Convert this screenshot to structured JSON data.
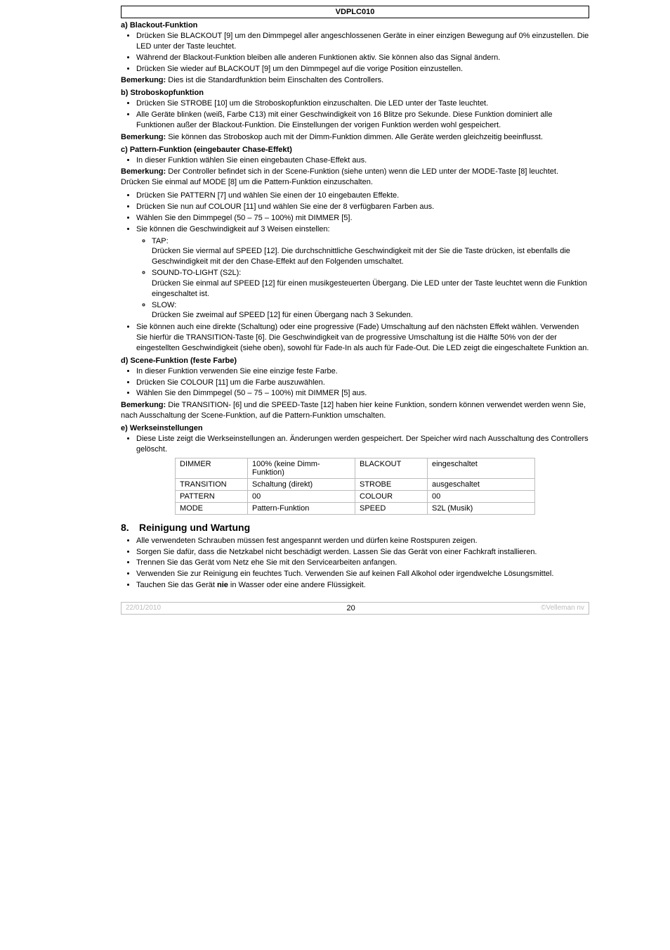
{
  "header": {
    "title": "VDPLC010"
  },
  "sections": {
    "a": {
      "heading": "a) Blackout-Funktion",
      "items": [
        "Drücken Sie BLACKOUT [9] um den Dimmpegel aller angeschlossenen Geräte in einer einzigen Bewegung auf 0% einzustellen. Die LED unter der Taste leuchtet.",
        "Während der Blackout-Funktion bleiben alle anderen Funktionen aktiv. Sie können also das Signal ändern.",
        "Drücken Sie wieder auf BLACKOUT [9] um den Dimmpegel auf die vorige Position einzustellen."
      ],
      "remark_lead": "Bemerkung:",
      "remark": " Dies ist die Standardfunktion beim Einschalten des Controllers."
    },
    "b": {
      "heading": "b) Stroboskopfunktion",
      "items": [
        "Drücken Sie STROBE [10] um die Stroboskopfunktion einzuschalten. Die LED unter der Taste leuchtet.",
        "Alle Geräte blinken (weiß, Farbe C13) mit einer Geschwindigkeit von 16 Blitze pro Sekunde. Diese Funktion dominiert alle Funktionen außer der Blackout-Funktion. Die Einstellungen der vorigen Funktion werden wohl gespeichert."
      ],
      "remark_lead": "Bemerkung:",
      "remark": " Sie können das Stroboskop auch mit der Dimm-Funktion dimmen. Alle Geräte werden gleichzeitig beeinflusst."
    },
    "c": {
      "heading": "c) Pattern-Funktion (eingebauter Chase-Effekt)",
      "item1": "In dieser Funktion wählen Sie einen eingebauten Chase-Effekt aus.",
      "remark1_lead": "Bemerkung:",
      "remark1": " Der Controller befindet sich in der Scene-Funktion (siehe unten) wenn die LED unter der MODE-Taste [8] leuchtet. Drücken Sie einmal auf MODE [8] um die Pattern-Funktion einzuschalten.",
      "items2": [
        "Drücken Sie PATTERN [7] und wählen Sie einen der 10 eingebauten Effekte.",
        "Drücken Sie nun auf COLOUR [11] und wählen Sie eine der 8 verfügbaren Farben aus.",
        "Wählen Sie den Dimmpegel (50 – 75 – 100%) mit DIMMER [5].",
        "Sie können die Geschwindigkeit auf 3 Weisen einstellen:"
      ],
      "sub": [
        {
          "label": "TAP:",
          "body": "Drücken Sie viermal auf SPEED [12]. Die durchschnittliche Geschwindigkeit mit der Sie die Taste drücken, ist ebenfalls die Geschwindigkeit mit der den Chase-Effekt auf den Folgenden umschaltet."
        },
        {
          "label": "SOUND-TO-LIGHT (S2L):",
          "body": "Drücken Sie einmal auf SPEED [12] für einen musikgesteuerten Übergang. Die LED unter der Taste leuchtet wenn die Funktion eingeschaltet ist."
        },
        {
          "label": "SLOW:",
          "body": "Drücken Sie zweimal auf SPEED [12] für einen Übergang nach 3 Sekunden."
        }
      ],
      "item_last": "Sie können auch eine direkte (Schaltung) oder eine progressive (Fade) Umschaltung auf den nächsten Effekt wählen. Verwenden Sie hierfür die TRANSITION-Taste [6]. Die Geschwindigkeit van de progressive Umschaltung ist die Hälfte 50% von der der eingestellten Geschwindigkeit (siehe oben), sowohl für Fade-In als auch für Fade-Out. Die LED zeigt die eingeschaltete Funktion an."
    },
    "d": {
      "heading": "d) Scene-Funktion (feste Farbe)",
      "items": [
        "In dieser Funktion verwenden Sie eine einzige feste Farbe.",
        "Drücken Sie COLOUR [11] um die Farbe auszuwählen.",
        "Wählen Sie den Dimmpegel (50 – 75 – 100%) mit DIMMER [5] aus."
      ],
      "remark_lead": "Bemerkung:",
      "remark": " Die TRANSITION- [6] und die SPEED-Taste [12] haben hier keine Funktion, sondern können verwendet werden wenn Sie, nach Ausschaltung der Scene-Funktion, auf die Pattern-Funktion umschalten."
    },
    "e": {
      "heading": "e) Werkseinstellungen",
      "item": "Diese Liste zeigt die Werkseinstellungen an. Änderungen werden gespeichert. Der Speicher wird nach Ausschaltung des Controllers gelöscht."
    }
  },
  "table": {
    "rows": [
      [
        "DIMMER",
        "100% (keine Dimm-Funktion)",
        "BLACKOUT",
        "eingeschaltet"
      ],
      [
        "TRANSITION",
        "Schaltung (direkt)",
        "STROBE",
        "ausgeschaltet"
      ],
      [
        "PATTERN",
        "00",
        "COLOUR",
        "00"
      ],
      [
        "MODE",
        "Pattern-Funktion",
        "SPEED",
        "S2L (Musik)"
      ]
    ]
  },
  "h2": {
    "num": "8.",
    "title": "Reinigung und Wartung"
  },
  "maint": {
    "items": [
      "Alle verwendeten Schrauben müssen fest angespannt werden und dürfen keine Rostspuren zeigen.",
      "Sorgen Sie dafür, dass die Netzkabel nicht beschädigt werden. Lassen Sie das Gerät von einer Fachkraft installieren.",
      "Trennen Sie das Gerät vom Netz ehe Sie mit den Servicearbeiten anfangen.",
      "Verwenden Sie zur Reinigung ein feuchtes Tuch. Verwenden Sie auf keinen Fall Alkohol oder irgendwelche Lösungsmittel."
    ],
    "last_pre": "Tauchen Sie das Gerät ",
    "last_bold": "nie",
    "last_post": " in Wasser oder eine andere Flüssigkeit."
  },
  "footer": {
    "left": "22/01/2010",
    "mid": "20",
    "right": "©Velleman nv"
  }
}
